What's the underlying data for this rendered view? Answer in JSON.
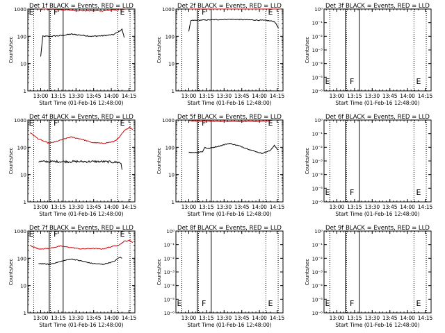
{
  "figure": {
    "xaxis_title": "Start Time (01-Feb-16 12:48:00)",
    "yaxis_title": "Counts/sec",
    "x_tick_labels": [
      "13:00",
      "13:15",
      "13:30",
      "13:45",
      "14:00",
      "14:15"
    ],
    "y_tick_labels_main": [
      "1",
      "10",
      "100",
      "1000"
    ],
    "y_tick_labels_empty": [
      "10⁰",
      "10⁻¹",
      "10⁻²",
      "10⁻³",
      "10⁻⁴",
      "10⁻⁵",
      "10⁻⁶"
    ],
    "colors": {
      "events": "#000000",
      "lld": "#cc0000",
      "axis": "#000000"
    }
  },
  "chart_data": [
    {
      "type": "line",
      "title": "Det 1f BLACK = Events, RED = LLD",
      "xlabel": "Start Time (01-Feb-16 12:48:00)",
      "ylabel": "Counts/sec",
      "yscale": "log",
      "ylim": [
        1,
        1000
      ],
      "x_ticks": [
        "13:00",
        "13:15",
        "13:30",
        "13:45",
        "14:00",
        "14:15"
      ],
      "markers": [
        "E",
        "F",
        "E"
      ],
      "series": [
        {
          "name": "Events",
          "color": "#000000",
          "noise": 0.04,
          "x": [
            0.12,
            0.14,
            0.16,
            0.2,
            0.3,
            0.4,
            0.5,
            0.6,
            0.7,
            0.8,
            0.85,
            0.88,
            0.9
          ],
          "y": [
            18,
            100,
            100,
            100,
            105,
            120,
            110,
            100,
            105,
            115,
            150,
            180,
            90
          ]
        },
        {
          "name": "LLD",
          "color": "#cc0000",
          "noise": 0.04,
          "x": [
            0.1,
            0.3,
            0.5,
            0.7,
            0.86,
            0.92
          ],
          "y": [
            1000,
            950,
            870,
            860,
            960,
            1000
          ]
        }
      ]
    },
    {
      "type": "line",
      "title": "Det 2f BLACK = Events, RED = LLD",
      "xlabel": "Start Time (01-Feb-16 12:48:00)",
      "ylabel": "Counts/sec",
      "yscale": "log",
      "ylim": [
        1,
        1000
      ],
      "x_ticks": [
        "13:00",
        "13:15",
        "13:30",
        "13:45",
        "14:00",
        "14:15"
      ],
      "markers": [
        "F",
        "E"
      ],
      "series": [
        {
          "name": "Events",
          "color": "#000000",
          "noise": 0.03,
          "x": [
            0.12,
            0.14,
            0.3,
            0.5,
            0.7,
            0.85,
            0.92,
            0.96
          ],
          "y": [
            150,
            380,
            400,
            420,
            400,
            380,
            350,
            200
          ]
        },
        {
          "name": "LLD",
          "color": "#cc0000",
          "noise": 0.03,
          "x": [
            0.12,
            0.4,
            0.7,
            0.9,
            0.98
          ],
          "y": [
            1050,
            1080,
            1100,
            1150,
            1250
          ]
        }
      ]
    },
    {
      "type": "line",
      "title": "Det 3f BLACK = Events, RED = LLD",
      "xlabel": "Start Time (01-Feb-16 12:48:00)",
      "ylabel": "Counts/sec",
      "yscale": "log",
      "ylim": [
        1e-06,
        1
      ],
      "y_tick_labels_empty": true,
      "x_ticks": [
        "13:00",
        "13:15",
        "13:30",
        "13:45",
        "14:00",
        "14:15"
      ],
      "markers": [
        "E",
        "F",
        "E"
      ],
      "series": []
    },
    {
      "type": "line",
      "title": "Det 4f BLACK = Events, RED = LLD",
      "xlabel": "Start Time (01-Feb-16 12:48:00)",
      "ylabel": "Counts/sec",
      "yscale": "log",
      "ylim": [
        1,
        1000
      ],
      "x_ticks": [
        "13:00",
        "13:15",
        "13:30",
        "13:45",
        "14:00",
        "14:15"
      ],
      "markers": [
        "E",
        "F",
        "E"
      ],
      "series": [
        {
          "name": "Events",
          "color": "#000000",
          "noise": 0.08,
          "x": [
            0.1,
            0.3,
            0.5,
            0.7,
            0.85,
            0.87,
            0.88
          ],
          "y": [
            30,
            30,
            30,
            30,
            28,
            26,
            15
          ]
        },
        {
          "name": "LLD",
          "color": "#cc0000",
          "noise": 0.03,
          "x": [
            0.02,
            0.1,
            0.2,
            0.3,
            0.4,
            0.5,
            0.6,
            0.7,
            0.8,
            0.85,
            0.9,
            0.95,
            0.98
          ],
          "y": [
            350,
            200,
            140,
            180,
            240,
            200,
            150,
            140,
            160,
            220,
            400,
            550,
            450
          ]
        }
      ]
    },
    {
      "type": "line",
      "title": "Det 5f BLACK = Events, RED = LLD",
      "xlabel": "Start Time (01-Feb-16 12:48:00)",
      "ylabel": "Counts/sec",
      "yscale": "log",
      "ylim": [
        1,
        1000
      ],
      "x_ticks": [
        "13:00",
        "13:15",
        "13:30",
        "13:45",
        "14:00",
        "14:15"
      ],
      "markers": [
        "F",
        "E"
      ],
      "series": [
        {
          "name": "Events",
          "color": "#000000",
          "noise": 0.03,
          "x": [
            0.12,
            0.2,
            0.25,
            0.27,
            0.3,
            0.4,
            0.5,
            0.6,
            0.7,
            0.8,
            0.88,
            0.92,
            0.95
          ],
          "y": [
            65,
            65,
            70,
            100,
            90,
            110,
            140,
            110,
            80,
            60,
            75,
            120,
            80
          ]
        },
        {
          "name": "LLD",
          "color": "#cc0000",
          "noise": 0.03,
          "x": [
            0.12,
            0.3,
            0.5,
            0.7,
            0.88
          ],
          "y": [
            950,
            900,
            900,
            880,
            920
          ]
        }
      ]
    },
    {
      "type": "line",
      "title": "Det 6f BLACK = Events, RED = LLD",
      "xlabel": "Start Time (01-Feb-16 12:48:00)",
      "ylabel": "Counts/sec",
      "yscale": "log",
      "ylim": [
        1e-06,
        1
      ],
      "y_tick_labels_empty": true,
      "x_ticks": [
        "13:00",
        "13:15",
        "13:30",
        "13:45",
        "14:00",
        "14:15"
      ],
      "markers": [
        "E",
        "F",
        "E"
      ],
      "series": []
    },
    {
      "type": "line",
      "title": "Det 7f BLACK = Events, RED = LLD",
      "xlabel": "Start Time (01-Feb-16 12:48:00)",
      "ylabel": "Counts/sec",
      "yscale": "log",
      "ylim": [
        1,
        1000
      ],
      "x_ticks": [
        "13:00",
        "13:15",
        "13:30",
        "13:45",
        "14:00",
        "14:15"
      ],
      "markers": [
        "E",
        "F",
        "E"
      ],
      "series": [
        {
          "name": "Events",
          "color": "#000000",
          "noise": 0.03,
          "x": [
            0.1,
            0.2,
            0.3,
            0.4,
            0.5,
            0.6,
            0.7,
            0.8,
            0.86,
            0.88
          ],
          "y": [
            65,
            60,
            75,
            95,
            80,
            65,
            60,
            75,
            110,
            100
          ]
        },
        {
          "name": "LLD",
          "color": "#cc0000",
          "noise": 0.03,
          "x": [
            0.02,
            0.1,
            0.2,
            0.3,
            0.4,
            0.5,
            0.6,
            0.7,
            0.8,
            0.86,
            0.9,
            0.95,
            0.98
          ],
          "y": [
            300,
            220,
            230,
            280,
            250,
            220,
            230,
            220,
            280,
            320,
            420,
            450,
            380
          ]
        }
      ]
    },
    {
      "type": "line",
      "title": "Det 8f BLACK = Events, RED = LLD",
      "xlabel": "Start Time (01-Feb-16 12:48:00)",
      "ylabel": "Counts/sec",
      "yscale": "log",
      "ylim": [
        1e-06,
        1
      ],
      "y_tick_labels_empty": true,
      "x_ticks": [
        "13:00",
        "13:15",
        "13:30",
        "13:45",
        "14:00",
        "14:15"
      ],
      "markers": [
        "E",
        "F",
        "E"
      ],
      "series": []
    },
    {
      "type": "line",
      "title": "Det 9f BLACK = Events, RED = LLD",
      "xlabel": "Start Time (01-Feb-16 12:48:00)",
      "ylabel": "Counts/sec",
      "yscale": "log",
      "ylim": [
        1e-06,
        1
      ],
      "y_tick_labels_empty": true,
      "x_ticks": [
        "13:00",
        "13:15",
        "13:30",
        "13:45",
        "14:00",
        "14:15"
      ],
      "markers": [
        "E",
        "F",
        "E"
      ],
      "series": []
    }
  ]
}
